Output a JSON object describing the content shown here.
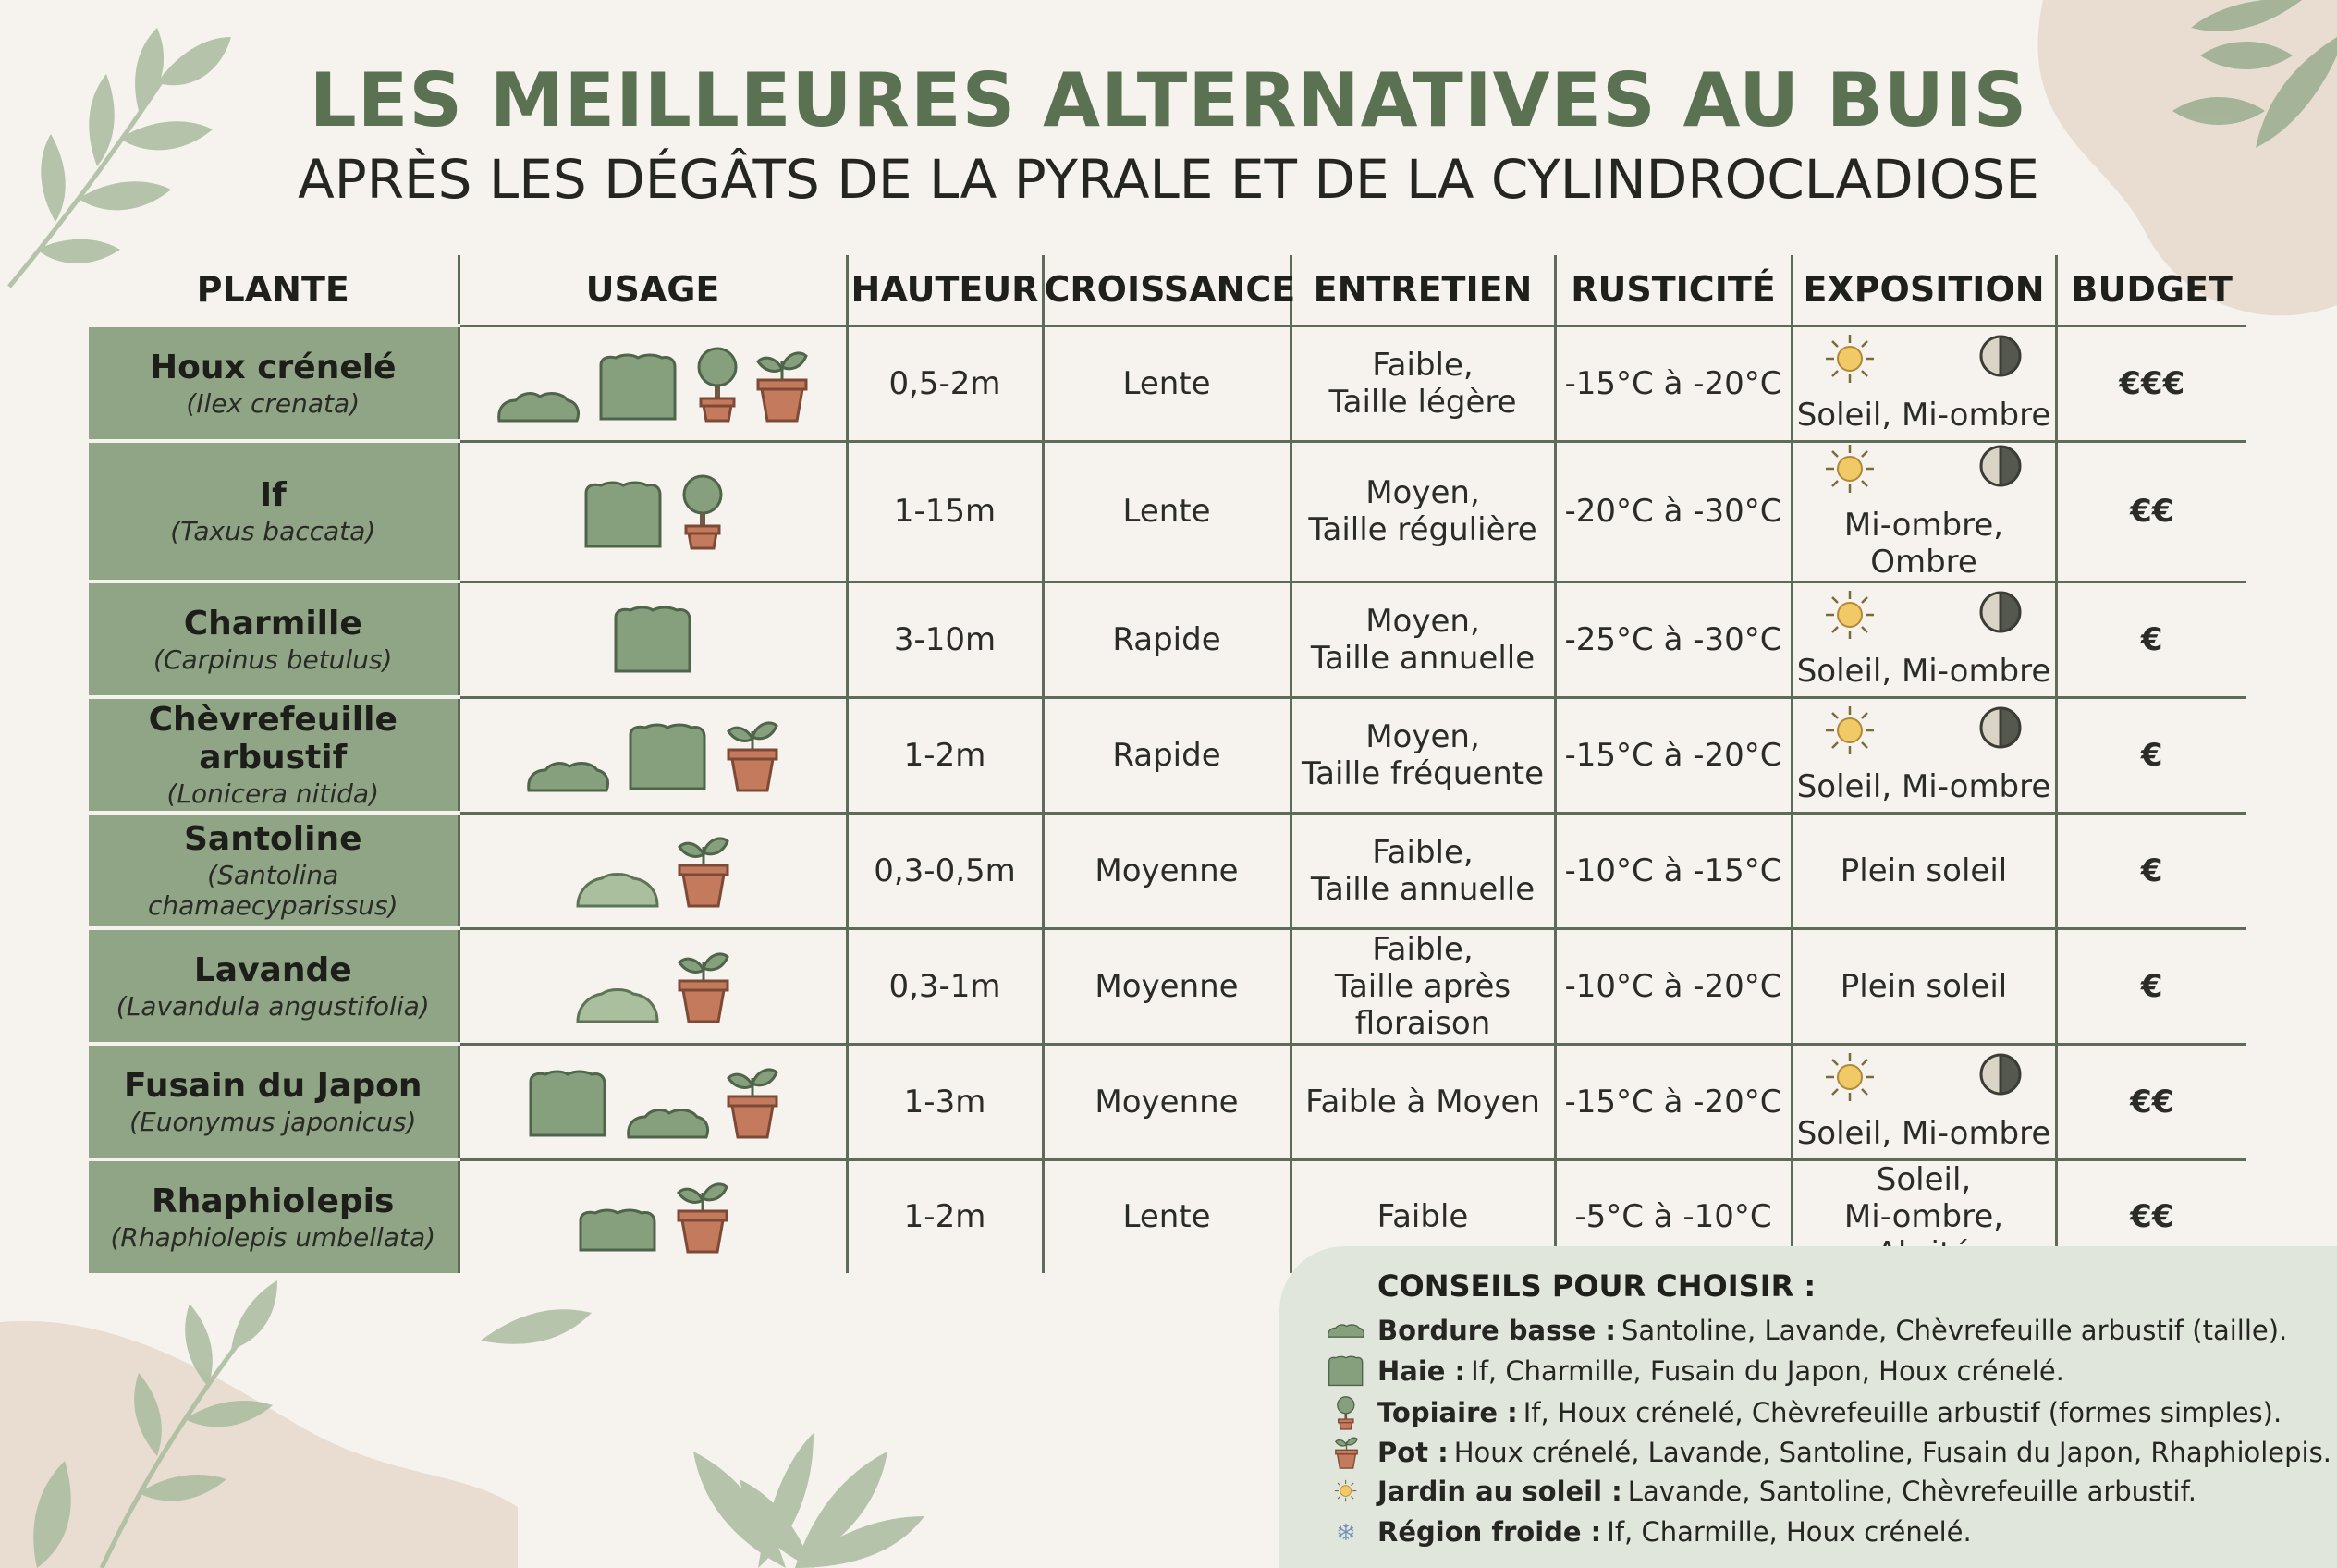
{
  "title": "LES MEILLEURES ALTERNATIVES AU BUIS",
  "subtitle": "APRÈS LES DÉGÂTS DE LA PYRALE ET DE LA CYLINDROCLADIOSE",
  "colors": {
    "accent_green": "#5a7252",
    "plant_cell": "#8fa585",
    "icon_green": "#86a07d",
    "pot": "#c47a5c",
    "sun": "#f2c967",
    "tips_bg": "#e1e6dc",
    "background": "#f6f3ee"
  },
  "headers": [
    "PLANTE",
    "USAGE",
    "HAUTEUR",
    "CROISSANCE",
    "ENTRETIEN",
    "RUSTICITÉ",
    "EXPOSITION",
    "BUDGET"
  ],
  "rows": [
    {
      "name": "Houx crénelé",
      "latin": "(Ilex crenata)",
      "usage": [
        "low-border-icon",
        "hedge-icon",
        "topiary-icon",
        "pot-icon"
      ],
      "height": "0,5-2m",
      "growth": "Lente",
      "maintenance_1": "Faible,",
      "maintenance_2": "Taille légère",
      "hardiness": "-15°C à -20°C",
      "exposure_icons": [
        "sun-icon",
        "half-shade-icon"
      ],
      "exposure_1": "Soleil, Mi-ombre",
      "exposure_2": "",
      "budget": "€€€"
    },
    {
      "name": "If",
      "latin": "(Taxus baccata)",
      "usage": [
        "hedge-icon",
        "topiary-icon"
      ],
      "height": "1-15m",
      "growth": "Lente",
      "maintenance_1": "Moyen,",
      "maintenance_2": "Taille régulière",
      "hardiness": "-20°C à -30°C",
      "exposure_icons": [
        "sun-icon",
        "half-shade-icon"
      ],
      "exposure_1": "Mi-ombre, Ombre",
      "exposure_2": "",
      "budget": "€€"
    },
    {
      "name": "Charmille",
      "latin": "(Carpinus betulus)",
      "usage": [
        "hedge-icon"
      ],
      "height": "3-10m",
      "growth": "Rapide",
      "maintenance_1": "Moyen,",
      "maintenance_2": "Taille annuelle",
      "hardiness": "-25°C à -30°C",
      "exposure_icons": [
        "sun-icon",
        "half-shade-icon"
      ],
      "exposure_1": "Soleil, Mi-ombre",
      "exposure_2": "",
      "budget": "€"
    },
    {
      "name": "Chèvrefeuille arbustif",
      "latin": "(Lonicera nitida)",
      "usage": [
        "low-border-icon",
        "hedge-icon",
        "pot-icon"
      ],
      "height": "1-2m",
      "growth": "Rapide",
      "maintenance_1": "Moyen,",
      "maintenance_2": "Taille fréquente",
      "hardiness": "-15°C à -20°C",
      "exposure_icons": [
        "sun-icon",
        "half-shade-icon"
      ],
      "exposure_1": "Soleil, Mi-ombre",
      "exposure_2": "",
      "budget": "€"
    },
    {
      "name": "Santoline",
      "latin": "(Santolina chamaecyparissus)",
      "usage": [
        "mound-icon",
        "pot-icon"
      ],
      "height": "0,3-0,5m",
      "growth": "Moyenne",
      "maintenance_1": "Faible,",
      "maintenance_2": "Taille annuelle",
      "hardiness": "-10°C à -15°C",
      "exposure_icons": [],
      "exposure_1": "Plein soleil",
      "exposure_2": "",
      "budget": "€"
    },
    {
      "name": "Lavande",
      "latin": "(Lavandula angustifolia)",
      "usage": [
        "mound-icon",
        "pot-icon"
      ],
      "height": "0,3-1m",
      "growth": "Moyenne",
      "maintenance_1": "Faible,",
      "maintenance_2": "Taille après floraison",
      "hardiness": "-10°C à -20°C",
      "exposure_icons": [],
      "exposure_1": "Plein soleil",
      "exposure_2": "",
      "budget": "€"
    },
    {
      "name": "Fusain du Japon",
      "latin": "(Euonymus japonicus)",
      "usage": [
        "hedge-icon",
        "low-border-icon",
        "pot-icon"
      ],
      "height": "1-3m",
      "growth": "Moyenne",
      "maintenance_1": "Faible à Moyen",
      "maintenance_2": "",
      "hardiness": "-15°C à -20°C",
      "exposure_icons": [
        "sun-icon",
        "half-shade-icon"
      ],
      "exposure_1": "Soleil, Mi-ombre",
      "exposure_2": "",
      "budget": "€€"
    },
    {
      "name": "Rhaphiolepis",
      "latin": "(Rhaphiolepis umbellata)",
      "usage": [
        "low-hedge-icon",
        "pot-icon"
      ],
      "height": "1-2m",
      "growth": "Lente",
      "maintenance_1": "Faible",
      "maintenance_2": "",
      "hardiness": "-5°C à -10°C",
      "exposure_icons": [],
      "exposure_1": "Soleil,",
      "exposure_2": "Mi-ombre, Abrité",
      "budget": "€€"
    }
  ],
  "tips": {
    "title": "CONSEILS POUR CHOISIR :",
    "items": [
      {
        "icon": "low-border-icon",
        "label": "Bordure basse :",
        "text": "Santoline, Lavande, Chèvrefeuille arbustif (taille)."
      },
      {
        "icon": "hedge-icon",
        "label": "Haie :",
        "text": "If, Charmille, Fusain du Japon, Houx crénelé."
      },
      {
        "icon": "topiary-icon",
        "label": "Topiaire :",
        "text": "If, Houx crénelé, Chèvrefeuille arbustif (formes simples)."
      },
      {
        "icon": "pot-icon",
        "label": "Pot :",
        "text": "Houx crénelé, Lavande, Santoline, Fusain du Japon, Rhaphiolepis."
      },
      {
        "icon": "sun-icon",
        "label": "Jardin au soleil :",
        "text": "Lavande, Santoline, Chèvrefeuille arbustif."
      },
      {
        "icon": "snowflake-icon",
        "label": "Région froide :",
        "text": "If, Charmille, Houx crénelé."
      }
    ]
  }
}
